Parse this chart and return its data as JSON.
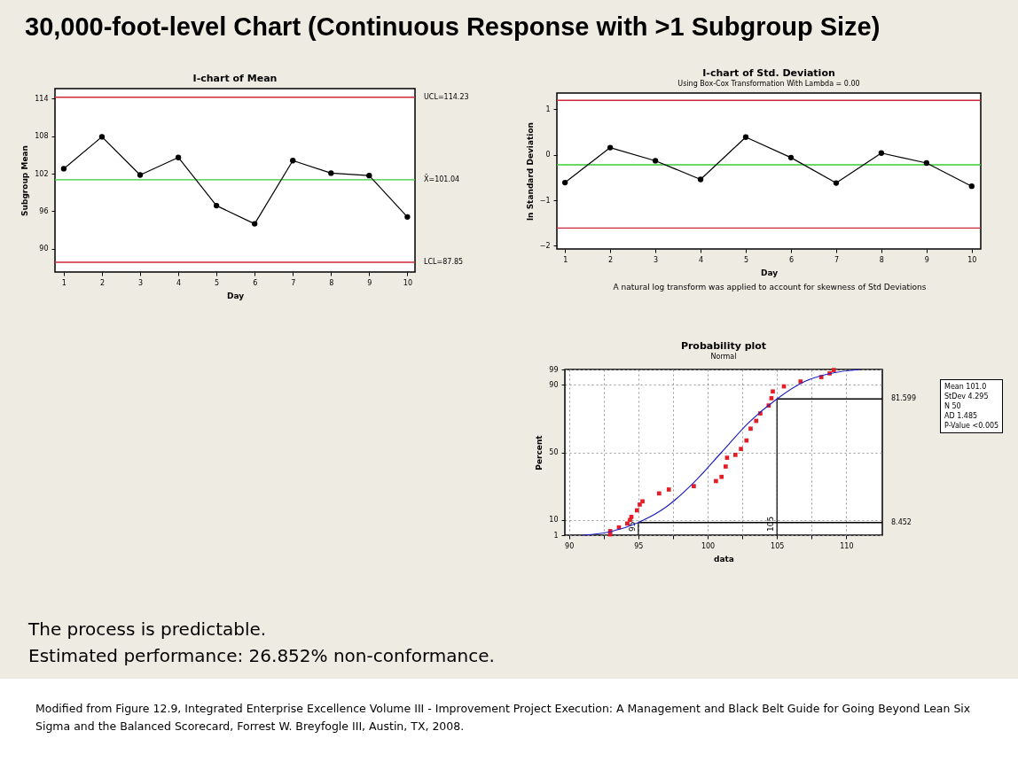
{
  "chart_data": [
    {
      "type": "other",
      "title": "30,000-foot-level Chart (Continuous Response with >1 Subgroup Size)"
    },
    {
      "type": "line",
      "title": "I-chart of Mean",
      "xlabel": "Day",
      "ylabel": "Subgroup Mean",
      "x": [
        1,
        2,
        3,
        4,
        5,
        6,
        7,
        8,
        9,
        10
      ],
      "xlim": [
        0.77,
        10.2
      ],
      "xticks": [
        1,
        2,
        3,
        4,
        5,
        6,
        7,
        8,
        9,
        10
      ],
      "ylim": [
        86.3,
        115.6
      ],
      "yticks": [
        90,
        96,
        102,
        108,
        114
      ],
      "marker": "circle",
      "series": [
        {
          "color": "#000000",
          "values": [
            102.8,
            107.9,
            101.8,
            104.6,
            96.9,
            94.0,
            104.1,
            102.1,
            101.7,
            95.1
          ]
        }
      ],
      "ref_lines": [
        {
          "axis": "y",
          "value": 114.23,
          "label": "UCL=114.23",
          "color": "#cc2a3c"
        },
        {
          "axis": "y",
          "value": 101.04,
          "label": "X̄=101.04",
          "color": "#33cc33"
        },
        {
          "axis": "y",
          "value": 87.85,
          "label": "LCL=87.85",
          "color": "#cc2a3c"
        }
      ]
    },
    {
      "type": "line",
      "title": "I-chart of Std. Deviation",
      "subtitle": "Using Box-Cox Transformation With Lambda = 0.00",
      "xlabel": "Day",
      "ylabel": "ln Standard Deviation",
      "x": [
        1,
        2,
        3,
        4,
        5,
        6,
        7,
        8,
        9,
        10
      ],
      "xlim": [
        0.82,
        10.2
      ],
      "xticks": [
        1,
        2,
        3,
        4,
        5,
        6,
        7,
        8,
        9,
        10
      ],
      "ylim": [
        -2.07,
        1.36
      ],
      "yticks": [
        -2,
        -1,
        0,
        1
      ],
      "marker": "circle",
      "series": [
        {
          "color": "#000000",
          "values": [
            -0.61,
            0.16,
            -0.13,
            -0.54,
            0.39,
            -0.06,
            -0.62,
            0.04,
            -0.18,
            -0.69
          ]
        }
      ],
      "ref_lines": [
        {
          "axis": "y",
          "value": 1.2,
          "color": "#cc2a3c"
        },
        {
          "axis": "y",
          "value": -0.22,
          "color": "#33cc33"
        },
        {
          "axis": "y",
          "value": -1.61,
          "color": "#cc2a3c"
        }
      ],
      "annotations": [
        "A natural log transform was applied to account for skewness of Std Deviations"
      ]
    },
    {
      "type": "scatter",
      "title": "Probability plot",
      "subtitle": "Normal",
      "xlabel": "data",
      "ylabel": "Percent",
      "xlim": [
        89.7,
        112.6
      ],
      "xticks": [
        90,
        {
          "value": 92.5,
          "label": null
        },
        95,
        {
          "value": 97.5,
          "label": null
        },
        100,
        {
          "value": 102.5,
          "label": null
        },
        105,
        {
          "value": 107.5,
          "label": null
        },
        110
      ],
      "ylim": [
        1,
        99
      ],
      "yticks": [
        1,
        10,
        50,
        90,
        99
      ],
      "grid": true,
      "marker": "square",
      "series": [
        {
          "type": "scatter",
          "color": "#e41e26",
          "x": [
            92.97,
            92.97,
            93.6,
            94.2,
            94.4,
            94.5,
            94.9,
            95.1,
            95.3,
            96.5,
            97.2,
            99.0,
            100.6,
            101.0,
            101.3,
            101.4,
            102.0,
            102.4,
            102.8,
            103.1,
            103.5,
            103.8,
            104.4,
            104.6,
            104.7,
            105.5,
            106.7,
            108.2,
            108.8,
            109.1
          ],
          "values": [
            1.5,
            3.4,
            5.6,
            7.9,
            10,
            11.8,
            15.7,
            19.1,
            21,
            25.7,
            28,
            30,
            33,
            35.5,
            41.6,
            46.8,
            48.5,
            52,
            57,
            64,
            68.6,
            73,
            77.7,
            82,
            86,
            89,
            91.9,
            94.5,
            96.7,
            98.7
          ]
        },
        {
          "type": "line",
          "marker": "none",
          "color": "#2020c0",
          "x": [
            91,
            93,
            95,
            97,
            99,
            101,
            103,
            105,
            107,
            109,
            111
          ],
          "values": [
            1.0,
            3.1,
            8.5,
            17.6,
            32.1,
            50,
            67.9,
            81.6,
            91.9,
            96.9,
            99.0
          ]
        }
      ],
      "ref_lines": [
        {
          "axis": "x",
          "value": 95,
          "label": "95",
          "color": "#000000"
        },
        {
          "axis": "x",
          "value": 105,
          "label": "105",
          "color": "#000000"
        },
        {
          "axis": "y",
          "value": 8.452,
          "label": "8.452",
          "color": "#000000"
        },
        {
          "axis": "y",
          "value": 81.599,
          "label": "81.599",
          "color": "#000000"
        }
      ],
      "annotations": [
        "Mean 101.0",
        "StDev 4.295",
        "N 50",
        "AD 1.485",
        "P-Value <0.005"
      ]
    },
    {
      "type": "other",
      "annotations": [
        "The process is predictable.",
        "Estimated performance: 26.852% non-conformance.",
        "Modified from Figure 12.9, Integrated Enterprise Excellence Volume III - Improvement Project Execution: A Management and Black Belt Guide for Going Beyond Lean Six Sigma and the Balanced Scorecard, Forrest W. Breyfogle III, Austin, TX, 2008."
      ]
    }
  ]
}
